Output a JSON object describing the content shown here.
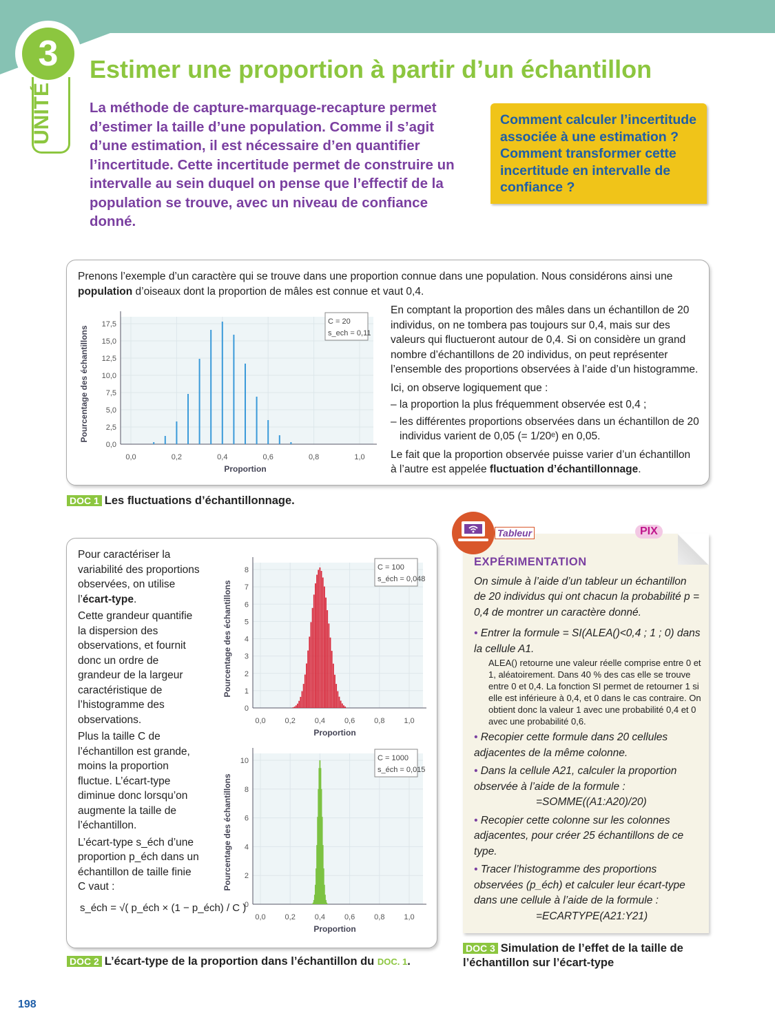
{
  "unit": {
    "number": "3",
    "label": "UNITÉ",
    "title": "Estimer une proportion à partir d’un échantillon"
  },
  "intro": "La méthode de capture-marquage-recapture permet d’estimer la taille d’une population. Comme il s’agit d’une estimation, il est nécessaire d’en quantifier l’incertitude. Cette incertitude permet de construire un intervalle au sein duquel on pense que l’effectif de la population se trouve, avec un niveau de confiance donné.",
  "question": "Comment calculer l’incertitude associée à une estimation ? Comment transformer cette incertitude en intervalle de confiance ?",
  "doc1": {
    "intro_a": "Prenons l’exemple d’un caractère qui se trouve dans une proportion connue dans une population. Nous considérons ainsi une ",
    "intro_bold": "population",
    "intro_b": " d’oiseaux dont la proportion de mâles est connue et vaut 0,4.",
    "p1": "En comptant la proportion des mâles dans un échantillon de 20 individus, on ne tombera pas toujours sur 0,4, mais sur des valeurs qui fluctueront autour de 0,4. Si on considère un grand nombre d’échantillons de 20 individus, on peut représenter l’ensemble des proportions observées à l’aide d’un histogramme.",
    "p2": "Ici, on observe logiquement que :",
    "li1": "– la proportion la plus fréquemment observée est 0,4 ;",
    "li2": "– les différentes proportions observées dans un échantillon de 20 individus varient de 0,05 (= 1/20ᵉ) en 0,05.",
    "p3_a": "Le fait que la proportion observée puisse varier d’un échantillon à l’autre est appelée ",
    "p3_bold": "fluctuation d’échantillonnage",
    "p3_b": ".",
    "tag": "DOC 1",
    "caption": "Les fluctuations d’échantillonnage."
  },
  "doc2": {
    "t1a": "Pour caractériser la variabilité des proportions observées, on utilise l’",
    "t1b": "écart-type",
    "t1c": ".",
    "t2": "Cette grandeur quantifie la dispersion des observations, et fournit donc un ordre de grandeur de la largeur caractéristique de l’histogramme des observations.",
    "t3": "Plus la taille C de l’échantillon est grande, moins la proportion fluctue. L’écart-type diminue donc lorsqu’on augmente la taille de l’échantillon.",
    "t4": "L’écart-type s_éch d’une proportion p_éch dans un échantillon de taille finie C vaut :",
    "formula": "s_éch = √( p_éch × (1 − p_éch) / C )",
    "tag": "DOC 2",
    "caption": "L’écart-type de la proportion dans l’échantillon du ",
    "caption_ref": "DOC. 1",
    "caption_end": "."
  },
  "doc3": {
    "badge": "Tableur",
    "pix": "PIX",
    "heading": "EXPÉRIMENTATION",
    "intro": "On simule à l’aide d’un tableur un échantillon de 20 individus qui ont chacun la probabilité p = 0,4 de montrer un caractère donné.",
    "b1": "Entrer la formule = SI(ALEA()<0,4 ; 1 ; 0) dans la cellule A1.",
    "note": "ALEA() retourne une valeur réelle comprise entre 0 et 1, aléatoirement. Dans 40 % des cas elle se trouve entre 0 et 0,4. La fonction SI permet de retourner 1 si elle est inférieure à 0,4, et 0 dans le cas contraire. On obtient donc la valeur 1 avec une probabilité 0,4 et 0 avec une probabilité 0,6.",
    "b2": "Recopier cette formule dans 20 cellules adjacentes de la même colonne.",
    "b3": "Dans la cellule A21, calculer la proportion observée à l’aide de la formule :",
    "f3": "=SOMME((A1:A20)/20)",
    "b4": "Recopier cette colonne sur les colonnes adjacentes, pour créer 25 échantillons de ce type.",
    "b5": "Tracer l’histogramme des proportions observées (p_éch) et calculer leur écart-type dans une cellule à l’aide de la formule :",
    "f5": "=ECARTYPE(A21:Y21)",
    "tag": "DOC 3",
    "caption": "Simulation de l’effet de la taille de l’échantillon sur l’écart-type"
  },
  "page_number": "198",
  "colors": {
    "green": "#8cc63f",
    "purple": "#7a3fa0",
    "blue_bars": "#3a9ad9",
    "red_bars": "#d8283a",
    "green_bars": "#7cc242"
  },
  "chart_data": [
    {
      "type": "bar",
      "xlabel": "Proportion",
      "ylabel": "Pourcentage des échantillons",
      "legend": [
        "C = 20",
        "s_ech = 0,11"
      ],
      "legend_placement": "top-right",
      "xlim": [
        0,
        1
      ],
      "ylim": [
        0,
        17.5
      ],
      "xticks": [
        "0,0",
        "0,2",
        "0,4",
        "0,6",
        "0,8",
        "1,0"
      ],
      "yticks": [
        "0,0",
        "2,5",
        "5,0",
        "7,5",
        "10,0",
        "12,5",
        "15,0",
        "17,5"
      ],
      "color": "#3a9ad9",
      "x": [
        0.1,
        0.15,
        0.2,
        0.25,
        0.3,
        0.35,
        0.4,
        0.45,
        0.5,
        0.55,
        0.6,
        0.65,
        0.7
      ],
      "values": [
        0.3,
        1.2,
        3.3,
        7.3,
        12.4,
        16.6,
        17.8,
        15.9,
        11.7,
        6.9,
        3.5,
        1.3,
        0.3
      ]
    },
    {
      "type": "bar",
      "xlabel": "Proportion",
      "ylabel": "Pourcentage des échantillons",
      "legend": [
        "C = 100",
        "s_éch = 0,048"
      ],
      "legend_placement": "top-right",
      "xlim": [
        0,
        1
      ],
      "ylim": [
        0,
        8
      ],
      "xticks": [
        "0,0",
        "0,2",
        "0,4",
        "0,6",
        "0,8",
        "1,0"
      ],
      "yticks": [
        "0",
        "1",
        "2",
        "3",
        "4",
        "5",
        "6",
        "7",
        "8"
      ],
      "color": "#d8283a",
      "x": [
        0.22,
        0.23,
        0.24,
        0.25,
        0.26,
        0.27,
        0.28,
        0.29,
        0.3,
        0.31,
        0.32,
        0.33,
        0.34,
        0.35,
        0.36,
        0.37,
        0.38,
        0.39,
        0.4,
        0.41,
        0.42,
        0.43,
        0.44,
        0.45,
        0.46,
        0.47,
        0.48,
        0.49,
        0.5,
        0.51,
        0.52,
        0.53,
        0.54,
        0.55,
        0.56,
        0.57
      ],
      "values": [
        0.04,
        0.08,
        0.15,
        0.25,
        0.41,
        0.64,
        0.97,
        1.39,
        1.93,
        2.57,
        3.32,
        4.12,
        4.96,
        5.78,
        6.55,
        7.2,
        7.7,
        7.98,
        8.12,
        7.92,
        7.54,
        7.02,
        6.38,
        5.65,
        4.88,
        4.07,
        3.3,
        2.56,
        1.92,
        1.39,
        0.97,
        0.65,
        0.42,
        0.26,
        0.15,
        0.08
      ]
    },
    {
      "type": "bar",
      "xlabel": "Proportion",
      "ylabel": "Pourcentage des échantillons",
      "legend": [
        "C = 1000",
        "s_éch = 0,015"
      ],
      "legend_placement": "top-right",
      "xlim": [
        0,
        1
      ],
      "ylim": [
        0,
        10
      ],
      "xticks": [
        "0,0",
        "0,2",
        "0,4",
        "0,6",
        "0,8",
        "1,0"
      ],
      "yticks": [
        "0",
        "2",
        "4",
        "6",
        "8",
        "10"
      ],
      "color": "#7cc242",
      "x": [
        0.35,
        0.355,
        0.36,
        0.365,
        0.37,
        0.375,
        0.38,
        0.385,
        0.39,
        0.395,
        0.4,
        0.405,
        0.41,
        0.415,
        0.42,
        0.425,
        0.43,
        0.435,
        0.44,
        0.445,
        0.45
      ],
      "values": [
        0.04,
        0.11,
        0.29,
        0.66,
        1.35,
        2.49,
        4.11,
        6.07,
        8.0,
        9.46,
        10,
        9.46,
        8.0,
        6.07,
        4.11,
        2.49,
        1.35,
        0.66,
        0.29,
        0.11,
        0.04
      ]
    }
  ]
}
